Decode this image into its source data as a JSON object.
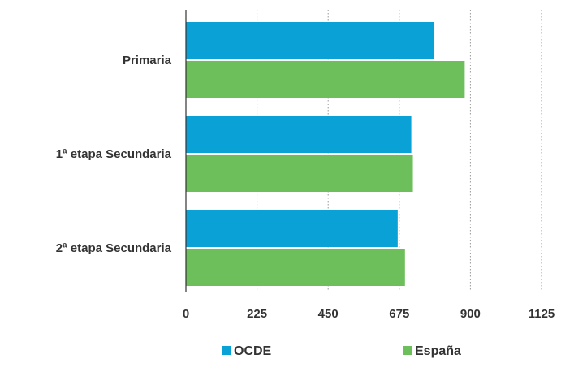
{
  "chart_data": {
    "type": "bar",
    "orientation": "horizontal",
    "categories": [
      "Primaria",
      "1ª etapa Secundaria",
      "2ª etapa Secundaria"
    ],
    "series": [
      {
        "name": "OCDE",
        "values": [
          786,
          713,
          670
        ]
      },
      {
        "name": "España",
        "values": [
          882,
          718,
          693
        ]
      }
    ],
    "xlim": [
      0,
      1125
    ],
    "xticks": [
      0,
      225,
      450,
      675,
      900,
      1125
    ],
    "xtick_labels": [
      "0",
      "225",
      "450",
      "675",
      "900",
      "1125"
    ],
    "grid": "vertical dotted",
    "legend_position": "bottom",
    "colors": {
      "OCDE": "#0aa2d6",
      "España": "#6cbf5a",
      "grid": "#9a9a9a",
      "axis": "#333333"
    }
  }
}
